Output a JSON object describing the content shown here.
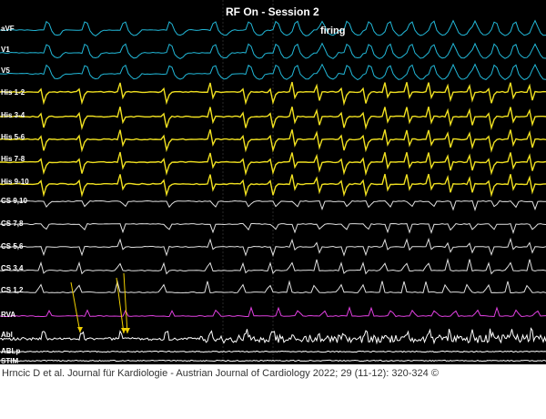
{
  "title": "RF On - Session 2",
  "annotation": "firing",
  "citation": "Hrncic D et al. Journal für Kardiologie - Austrian Journal of Cardiology 2022; 29 (11-12): 320-324 ©",
  "colors": {
    "background": "#000000",
    "surface_ecg": "#22b8d8",
    "his": "#f0e020",
    "cs": "#e0e0e0",
    "rva": "#e040e0",
    "abl": "#ffffff",
    "arrow": "#f0d000"
  },
  "channels": [
    {
      "label": "aVF",
      "group": "surface_ecg"
    },
    {
      "label": "V1",
      "group": "surface_ecg"
    },
    {
      "label": "V5",
      "group": "surface_ecg"
    },
    {
      "label": "His 1-2",
      "group": "his"
    },
    {
      "label": "His 3-4",
      "group": "his"
    },
    {
      "label": "His 5-6",
      "group": "his"
    },
    {
      "label": "His 7-8",
      "group": "his"
    },
    {
      "label": "His 9-10",
      "group": "his"
    },
    {
      "label": "CS 9,10",
      "group": "cs"
    },
    {
      "label": "CS 7,8",
      "group": "cs"
    },
    {
      "label": "CS 5,6",
      "group": "cs"
    },
    {
      "label": "CS 3,4",
      "group": "cs"
    },
    {
      "label": "CS 1,2",
      "group": "cs"
    },
    {
      "label": "RVA",
      "group": "rva"
    },
    {
      "label": "Abl",
      "group": "abl"
    },
    {
      "label": "ABLp",
      "group": "abl"
    },
    {
      "label": "STIM",
      "group": "abl"
    }
  ]
}
